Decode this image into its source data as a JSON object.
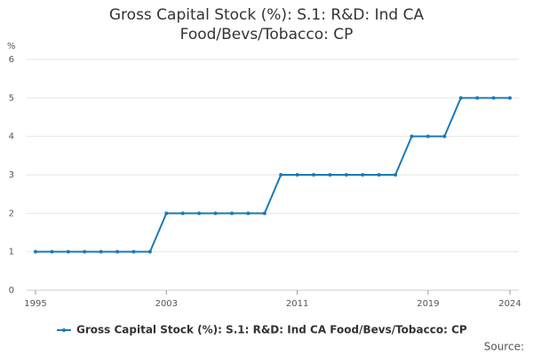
{
  "chart_data": {
    "type": "line",
    "title": "Gross Capital Stock (%): S.1: R&D: Ind CA Food/Bevs/Tobacco: CP",
    "y_label": "%",
    "source": "Source:",
    "x": [
      1995,
      1996,
      1997,
      1998,
      1999,
      2000,
      2001,
      2002,
      2003,
      2004,
      2005,
      2006,
      2007,
      2008,
      2009,
      2010,
      2011,
      2012,
      2013,
      2014,
      2015,
      2016,
      2017,
      2018,
      2019,
      2020,
      2021,
      2022,
      2023,
      2024
    ],
    "series": [
      {
        "name": "Gross Capital Stock (%): S.1: R&D: Ind CA Food/Bevs/Tobacco: CP",
        "color": "#1a7ab8",
        "values": [
          1,
          1,
          1,
          1,
          1,
          1,
          1,
          1,
          2,
          2,
          2,
          2,
          2,
          2,
          2,
          3,
          3,
          3,
          3,
          3,
          3,
          3,
          3,
          4,
          4,
          4,
          5,
          5,
          5,
          5
        ]
      }
    ],
    "xlim": [
      1995,
      2024
    ],
    "xticks": [
      1995,
      2003,
      2011,
      2019,
      2024
    ],
    "ylim": [
      0,
      6
    ],
    "yticks": [
      0,
      1,
      2,
      3,
      4,
      5,
      6
    ],
    "grid": true,
    "legend": "bottom"
  }
}
